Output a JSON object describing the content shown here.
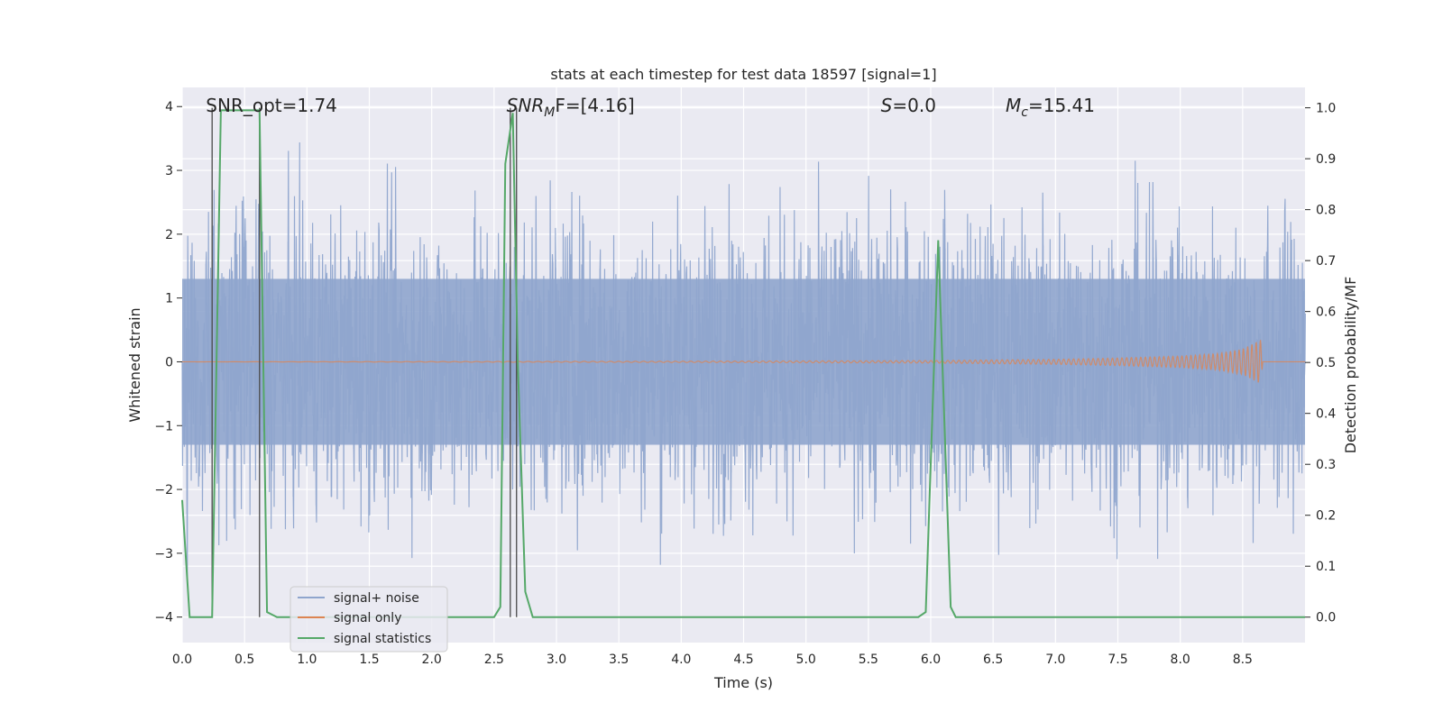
{
  "chart_data": {
    "type": "line",
    "title": "stats at each timestep for test data 18597 [signal=1]",
    "xlabel": "Time (s)",
    "ylabel": "Whitened strain",
    "ylabel_right": "Detection probability/MF",
    "xlim": [
      0.0,
      9.0
    ],
    "ylim": [
      -4.4,
      4.3
    ],
    "ylim_right": [
      -0.05,
      1.04
    ],
    "xticks": [
      "0.0",
      "0.5",
      "1.0",
      "1.5",
      "2.0",
      "2.5",
      "3.0",
      "3.5",
      "4.0",
      "4.5",
      "5.0",
      "5.5",
      "6.0",
      "6.5",
      "7.0",
      "7.5",
      "8.0",
      "8.5"
    ],
    "yticks": [
      "4",
      "3",
      "2",
      "1",
      "0",
      "−1",
      "−2",
      "−3",
      "−4"
    ],
    "yticks_right": [
      "1.0",
      "0.9",
      "0.8",
      "0.7",
      "0.6",
      "0.5",
      "0.4",
      "0.3",
      "0.2",
      "0.1",
      "0.0"
    ],
    "annotations": {
      "snr_opt": "SNR_opt=1.74",
      "snr_mf_base": "SNR",
      "snr_mf_sub": "M",
      "snr_mf_rest": "F=[4.16]",
      "s_label": "S",
      "s_value": "=0.0",
      "mc_base": "M",
      "mc_sub": "c",
      "mc_value": "=15.41"
    },
    "legend": {
      "position": "lower-left",
      "entries": [
        "signal+ noise",
        "signal only",
        "signal statistics"
      ]
    },
    "colors": {
      "noise": "#8fa5cd",
      "signal": "#dd8452",
      "stats": "#55a868",
      "marker": "#4a4a4a",
      "background": "#eaeaf2",
      "grid": "#ffffff"
    },
    "series": [
      {
        "name": "signal statistics",
        "axis": "right",
        "x": [
          0.0,
          0.06,
          0.14,
          0.24,
          0.31,
          0.44,
          0.58,
          0.62,
          0.68,
          0.76,
          0.85,
          1.0,
          2.5,
          2.55,
          2.59,
          2.65,
          2.69,
          2.75,
          2.81,
          2.9,
          5.9,
          5.96,
          6.06,
          6.16,
          6.2,
          9.0
        ],
        "y": [
          0.23,
          0.0,
          0.0,
          0.0,
          0.995,
          0.995,
          0.995,
          0.995,
          0.01,
          0.0,
          0.0,
          0.0,
          0.0,
          0.02,
          0.89,
          0.99,
          0.5,
          0.05,
          0.0,
          0.0,
          0.0,
          0.01,
          0.74,
          0.02,
          0.0,
          0.0
        ]
      },
      {
        "name": "signal only",
        "axis": "left",
        "description": "chirp signal, amplitude rising from ~0 to ~0.35 near t=8.65 s, then ending",
        "x": [
          0.0,
          4.0,
          6.0,
          7.0,
          7.5,
          8.0,
          8.3,
          8.5,
          8.6,
          8.65,
          8.66,
          9.0
        ],
        "amplitude": [
          0.0,
          0.01,
          0.02,
          0.04,
          0.06,
          0.09,
          0.13,
          0.2,
          0.3,
          0.35,
          0.0,
          0.0
        ]
      },
      {
        "name": "signal+ noise",
        "axis": "left",
        "description": "dense whitened noise, approx. Gaussian, range -4.0 to 4.0 over 0-9 s"
      }
    ],
    "vertical_markers": [
      0.24,
      0.62,
      2.63,
      2.68
    ]
  }
}
